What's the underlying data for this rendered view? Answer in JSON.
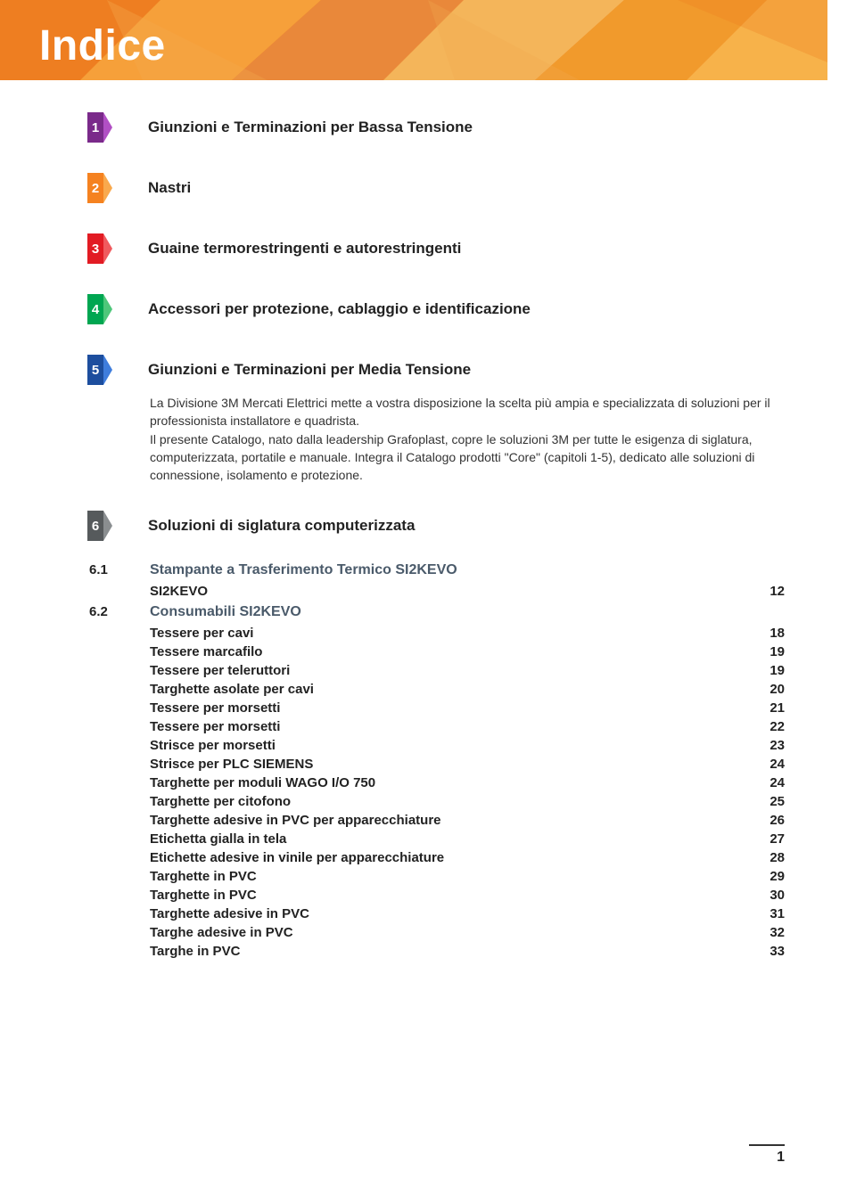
{
  "header": {
    "title": "Indice",
    "poly_colors": {
      "c1": "#f58220",
      "c2": "#f6a03a",
      "c3": "#f4b55a",
      "c4": "#e9883a",
      "c5": "#f19a2c",
      "c6": "#f7b24a",
      "c7": "#ee7e21",
      "c8": "#f3a84e"
    },
    "title_color": "#ffffff",
    "title_fontsize": 48
  },
  "chapters": [
    {
      "num": "1",
      "title": "Giunzioni e Terminazioni per Bassa Tensione",
      "sq_color": "#7a2a8a",
      "tri_color": "#b14fc4"
    },
    {
      "num": "2",
      "title": "Nastri",
      "sq_color": "#f58220",
      "tri_color": "#f9a94d"
    },
    {
      "num": "3",
      "title": "Guaine termorestringenti e autorestringenti",
      "sq_color": "#e21b23",
      "tri_color": "#f05a5e"
    },
    {
      "num": "4",
      "title": "Accessori per protezione, cablaggio e identificazione",
      "sq_color": "#00a651",
      "tri_color": "#4ec77a"
    },
    {
      "num": "5",
      "title": "Giunzioni e Terminazioni per Media Tensione",
      "sq_color": "#1d4e9e",
      "tri_color": "#3f7ddc"
    }
  ],
  "intro_text": "La Divisione 3M Mercati Elettrici mette a vostra disposizione la scelta più ampia e specializzata di soluzioni per il professionista installatore e quadrista.\nIl presente Catalogo, nato dalla leadership Grafoplast, copre le soluzioni 3M per tutte le esigenza di siglatura, computerizzata, portatile e manuale. Integra il Catalogo prodotti \"Core\" (capitoli 1-5), dedicato alle soluzioni di connessione, isolamento e protezione.",
  "chapter6": {
    "num": "6",
    "title": "Soluzioni di siglatura computerizzata",
    "sq_color": "#565a5c",
    "tri_color": "#8a8e90",
    "sub1": {
      "num": "6.1",
      "title": "Stampante a Trasferimento Termico SI2KEVO",
      "items": [
        {
          "name": "SI2KEVO",
          "page": "12"
        }
      ]
    },
    "sub2": {
      "num": "6.2",
      "title": "Consumabili SI2KEVO",
      "items": [
        {
          "name": "Tessere per cavi",
          "page": "18"
        },
        {
          "name": "Tessere marcafilo",
          "page": "19"
        },
        {
          "name": "Tessere per teleruttori",
          "page": "19"
        },
        {
          "name": "Targhette asolate per cavi",
          "page": "20"
        },
        {
          "name": "Tessere per morsetti",
          "page": "21"
        },
        {
          "name": "Tessere per morsetti",
          "page": "22"
        },
        {
          "name": "Strisce per morsetti",
          "page": "23"
        },
        {
          "name": "Strisce per PLC SIEMENS",
          "page": "24"
        },
        {
          "name": "Targhette per moduli WAGO I/O 750",
          "page": "24"
        },
        {
          "name": "Targhette per citofono",
          "page": "25"
        },
        {
          "name": "Targhette adesive in PVC per apparecchiature",
          "page": "26"
        },
        {
          "name": "Etichetta gialla in tela",
          "page": "27"
        },
        {
          "name": "Etichette adesive in vinile per apparecchiature",
          "page": "28"
        },
        {
          "name": "Targhette in PVC",
          "page": "29"
        },
        {
          "name": "Targhette in PVC",
          "page": "30"
        },
        {
          "name": "Targhette adesive in PVC",
          "page": "31"
        },
        {
          "name": "Targhe adesive in PVC",
          "page": "32"
        },
        {
          "name": "Targhe in PVC",
          "page": "33"
        }
      ]
    }
  },
  "footer": {
    "page_number": "1"
  },
  "style": {
    "subtitle_color": "#4a5a6a",
    "text_color": "#222222",
    "intro_color": "#333333"
  }
}
